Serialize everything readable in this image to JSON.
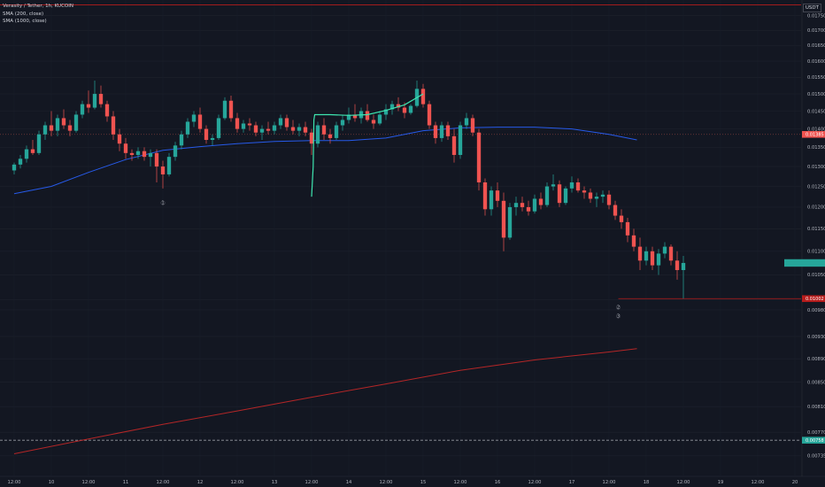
{
  "legend": {
    "symbol": "Verasity / Tether, 1h, KUCOIN",
    "sma_fast": "SMA (200, close)",
    "sma_slow": "SMA (1000, close)"
  },
  "currency_label": "USDT",
  "colors": {
    "background": "#131722",
    "bull": "#26a69a",
    "bear": "#ef5350",
    "sma_fast": "#2962ff",
    "sma_slow": "#c62828",
    "hline": "#b71c1c",
    "custom_line": "#3ee6b0"
  },
  "chart_data": {
    "type": "candlestick",
    "y_axis": {
      "scale": "log",
      "ylim": [
        0.007071,
        0.01805
      ],
      "ticks": [
        0.0175,
        0.017,
        0.0165,
        0.016,
        0.0155,
        0.015,
        0.0145,
        0.014,
        0.0135,
        0.013,
        0.0125,
        0.012,
        0.0115,
        0.011,
        0.0105,
        0.01,
        0.0098,
        0.0093,
        0.0089,
        0.0085,
        0.0081,
        0.0077,
        0.00735,
        0.007
      ]
    },
    "x_axis": {
      "start": "2022-11-09 12:00",
      "end": "2022-11-20 02:00",
      "ticks": [
        {
          "t": "2022-11-09 12:00",
          "label": "12:00"
        },
        {
          "t": "2022-11-10 00:00",
          "label": "10"
        },
        {
          "t": "2022-11-10 12:00",
          "label": "12:00"
        },
        {
          "t": "2022-11-11 00:00",
          "label": "11"
        },
        {
          "t": "2022-11-11 12:00",
          "label": "12:00"
        },
        {
          "t": "2022-11-12 00:00",
          "label": "12"
        },
        {
          "t": "2022-11-12 12:00",
          "label": "12:00"
        },
        {
          "t": "2022-11-13 00:00",
          "label": "13"
        },
        {
          "t": "2022-11-13 12:00",
          "label": "12:00"
        },
        {
          "t": "2022-11-14 00:00",
          "label": "14"
        },
        {
          "t": "2022-11-14 12:00",
          "label": "12:00"
        },
        {
          "t": "2022-11-15 00:00",
          "label": "15"
        },
        {
          "t": "2022-11-15 12:00",
          "label": "12:00"
        },
        {
          "t": "2022-11-16 00:00",
          "label": "16"
        },
        {
          "t": "2022-11-16 12:00",
          "label": "12:00"
        },
        {
          "t": "2022-11-17 00:00",
          "label": "17"
        },
        {
          "t": "2022-11-17 12:00",
          "label": "12:00"
        },
        {
          "t": "2022-11-18 00:00",
          "label": "18"
        },
        {
          "t": "2022-11-18 12:00",
          "label": "12:00"
        },
        {
          "t": "2022-11-19 00:00",
          "label": "19"
        },
        {
          "t": "2022-11-19 12:00",
          "label": "12:00"
        },
        {
          "t": "2022-11-20 00:00",
          "label": "20"
        }
      ]
    },
    "series": [
      {
        "name": "SMA (200, close)",
        "type": "line",
        "points": [
          [
            "2022-11-09 12:00",
            0.01232
          ],
          [
            "2022-11-10 00:00",
            0.0125
          ],
          [
            "2022-11-10 12:00",
            0.01285
          ],
          [
            "2022-11-11 00:00",
            0.01318
          ],
          [
            "2022-11-11 12:00",
            0.01342
          ],
          [
            "2022-11-12 00:00",
            0.01352
          ],
          [
            "2022-11-12 12:00",
            0.0136
          ],
          [
            "2022-11-13 00:00",
            0.01366
          ],
          [
            "2022-11-13 12:00",
            0.01368
          ],
          [
            "2022-11-14 00:00",
            0.01368
          ],
          [
            "2022-11-14 12:00",
            0.01375
          ],
          [
            "2022-11-15 00:00",
            0.01395
          ],
          [
            "2022-11-15 12:00",
            0.01403
          ],
          [
            "2022-11-16 00:00",
            0.01405
          ],
          [
            "2022-11-16 12:00",
            0.01405
          ],
          [
            "2022-11-17 00:00",
            0.014
          ],
          [
            "2022-11-17 12:00",
            0.01385
          ],
          [
            "2022-11-17 21:00",
            0.0137
          ]
        ]
      },
      {
        "name": "SMA (1000, close)",
        "type": "line",
        "points": [
          [
            "2022-11-09 12:00",
            0.00738
          ],
          [
            "2022-11-10 12:00",
            0.0076
          ],
          [
            "2022-11-11 12:00",
            0.00782
          ],
          [
            "2022-11-12 12:00",
            0.00803
          ],
          [
            "2022-11-13 12:00",
            0.00825
          ],
          [
            "2022-11-14 12:00",
            0.00847
          ],
          [
            "2022-11-15 12:00",
            0.0087
          ],
          [
            "2022-11-16 12:00",
            0.00888
          ],
          [
            "2022-11-17 12:00",
            0.00902
          ],
          [
            "2022-11-17 21:00",
            0.00908
          ]
        ]
      }
    ],
    "horizontal_lines": [
      {
        "y": 0.01788,
        "style": "solid",
        "color": "#b71c1c"
      },
      {
        "y": 0.01002,
        "style": "solid",
        "color": "#b71c1c",
        "x_from": "2022-11-17 15:00"
      },
      {
        "y": 0.01385,
        "style": "dotted",
        "color": "#7c3b3b"
      },
      {
        "y": 0.00758,
        "style": "dashed",
        "color": "#9598a1"
      }
    ],
    "custom_line": {
      "name": "",
      "points": [
        [
          "2022-11-13 12:00",
          0.01225
        ],
        [
          "2022-11-13 12:30",
          0.013
        ],
        [
          "2022-11-13 12:45",
          0.01425
        ],
        [
          "2022-11-13 13:00",
          0.0144
        ],
        [
          "2022-11-13 18:00",
          0.0144
        ],
        [
          "2022-11-14 00:00",
          0.01438
        ],
        [
          "2022-11-14 06:00",
          0.0144
        ],
        [
          "2022-11-14 12:00",
          0.01452
        ],
        [
          "2022-11-14 18:00",
          0.01468
        ],
        [
          "2022-11-15 00:00",
          0.015
        ]
      ]
    },
    "price_tags": [
      {
        "y": 0.01385,
        "label": "0.01385",
        "color": "#ef5350"
      },
      {
        "y": 0.01075,
        "label": "",
        "color": "#26a69a",
        "wide": true
      },
      {
        "y": 0.01002,
        "label": "0.01002",
        "color": "#b71c1c"
      },
      {
        "y": 0.00758,
        "label": "0.00758",
        "color": "#26a69a"
      }
    ],
    "markers": [
      {
        "t": "2022-11-11 12:00",
        "y": 0.0121,
        "label": "1"
      },
      {
        "t": "2022-11-17 15:00",
        "y": 0.00985,
        "label": "2"
      },
      {
        "t": "2022-11-17 15:00",
        "y": 0.00968,
        "label": "3"
      }
    ],
    "ohlc": [
      [
        "2022-11-09 12:00",
        0.0129,
        0.0131,
        0.0128,
        0.01305
      ],
      [
        "2022-11-09 14:00",
        0.01305,
        0.0133,
        0.01295,
        0.0132
      ],
      [
        "2022-11-09 16:00",
        0.0132,
        0.01355,
        0.0131,
        0.01345
      ],
      [
        "2022-11-09 18:00",
        0.01345,
        0.0137,
        0.0133,
        0.01335
      ],
      [
        "2022-11-09 20:00",
        0.01335,
        0.01395,
        0.0133,
        0.01385
      ],
      [
        "2022-11-09 22:00",
        0.01385,
        0.0142,
        0.0137,
        0.0141
      ],
      [
        "2022-11-10 00:00",
        0.0141,
        0.0145,
        0.0138,
        0.01395
      ],
      [
        "2022-11-10 02:00",
        0.01395,
        0.0144,
        0.0138,
        0.0143
      ],
      [
        "2022-11-10 04:00",
        0.0143,
        0.01455,
        0.014,
        0.0141
      ],
      [
        "2022-11-10 06:00",
        0.0141,
        0.01425,
        0.0138,
        0.01395
      ],
      [
        "2022-11-10 08:00",
        0.01395,
        0.0145,
        0.0139,
        0.0144
      ],
      [
        "2022-11-10 10:00",
        0.0144,
        0.0148,
        0.0143,
        0.0147
      ],
      [
        "2022-11-10 12:00",
        0.0147,
        0.0151,
        0.01445,
        0.0146
      ],
      [
        "2022-11-10 14:00",
        0.0146,
        0.0154,
        0.01455,
        0.015
      ],
      [
        "2022-11-10 16:00",
        0.015,
        0.01525,
        0.0146,
        0.0147
      ],
      [
        "2022-11-10 18:00",
        0.0147,
        0.0148,
        0.0142,
        0.01435
      ],
      [
        "2022-11-10 20:00",
        0.01435,
        0.0145,
        0.0137,
        0.01385
      ],
      [
        "2022-11-10 22:00",
        0.01385,
        0.014,
        0.0134,
        0.0136
      ],
      [
        "2022-11-11 00:00",
        0.0136,
        0.01375,
        0.0132,
        0.01335
      ],
      [
        "2022-11-11 02:00",
        0.01335,
        0.01345,
        0.01315,
        0.0133
      ],
      [
        "2022-11-11 04:00",
        0.0133,
        0.0135,
        0.0132,
        0.0134
      ],
      [
        "2022-11-11 06:00",
        0.0134,
        0.0135,
        0.01315,
        0.01325
      ],
      [
        "2022-11-11 08:00",
        0.01325,
        0.01345,
        0.013,
        0.01335
      ],
      [
        "2022-11-11 10:00",
        0.01335,
        0.01345,
        0.0126,
        0.013
      ],
      [
        "2022-11-11 12:00",
        0.013,
        0.01315,
        0.01245,
        0.0128
      ],
      [
        "2022-11-11 14:00",
        0.0128,
        0.01335,
        0.01275,
        0.01325
      ],
      [
        "2022-11-11 16:00",
        0.01325,
        0.01365,
        0.01315,
        0.01355
      ],
      [
        "2022-11-11 18:00",
        0.01355,
        0.01395,
        0.01345,
        0.01385
      ],
      [
        "2022-11-11 20:00",
        0.01385,
        0.0143,
        0.01375,
        0.0142
      ],
      [
        "2022-11-11 22:00",
        0.0142,
        0.0145,
        0.01405,
        0.0144
      ],
      [
        "2022-11-12 00:00",
        0.0144,
        0.0146,
        0.0139,
        0.014
      ],
      [
        "2022-11-12 02:00",
        0.014,
        0.0141,
        0.0136,
        0.0137
      ],
      [
        "2022-11-12 04:00",
        0.0137,
        0.01385,
        0.01355,
        0.01375
      ],
      [
        "2022-11-12 06:00",
        0.01375,
        0.0144,
        0.0137,
        0.0143
      ],
      [
        "2022-11-12 08:00",
        0.0143,
        0.0149,
        0.01425,
        0.0148
      ],
      [
        "2022-11-12 10:00",
        0.0148,
        0.01495,
        0.0142,
        0.0143
      ],
      [
        "2022-11-12 12:00",
        0.0143,
        0.01445,
        0.0139,
        0.014
      ],
      [
        "2022-11-12 14:00",
        0.014,
        0.01425,
        0.0139,
        0.01415
      ],
      [
        "2022-11-12 16:00",
        0.01415,
        0.0143,
        0.01395,
        0.0141
      ],
      [
        "2022-11-12 18:00",
        0.0141,
        0.0142,
        0.0138,
        0.0139
      ],
      [
        "2022-11-12 20:00",
        0.0139,
        0.0141,
        0.0137,
        0.014
      ],
      [
        "2022-11-12 22:00",
        0.014,
        0.0142,
        0.01385,
        0.01395
      ],
      [
        "2022-11-13 00:00",
        0.01395,
        0.0142,
        0.01385,
        0.0141
      ],
      [
        "2022-11-13 02:00",
        0.0141,
        0.0144,
        0.014,
        0.0143
      ],
      [
        "2022-11-13 04:00",
        0.0143,
        0.0144,
        0.01395,
        0.01405
      ],
      [
        "2022-11-13 06:00",
        0.01405,
        0.01425,
        0.01385,
        0.01395
      ],
      [
        "2022-11-13 08:00",
        0.01395,
        0.01415,
        0.0138,
        0.01405
      ],
      [
        "2022-11-13 10:00",
        0.01405,
        0.0142,
        0.0138,
        0.0139
      ],
      [
        "2022-11-13 12:00",
        0.0139,
        0.014,
        0.0133,
        0.0136
      ],
      [
        "2022-11-13 14:00",
        0.0136,
        0.0142,
        0.0135,
        0.0141
      ],
      [
        "2022-11-13 16:00",
        0.0141,
        0.0143,
        0.0137,
        0.01385
      ],
      [
        "2022-11-13 18:00",
        0.01385,
        0.014,
        0.0136,
        0.01375
      ],
      [
        "2022-11-13 20:00",
        0.01375,
        0.0142,
        0.0137,
        0.0141
      ],
      [
        "2022-11-13 22:00",
        0.0141,
        0.0144,
        0.01395,
        0.01425
      ],
      [
        "2022-11-14 00:00",
        0.01425,
        0.0146,
        0.01415,
        0.0144
      ],
      [
        "2022-11-14 02:00",
        0.0144,
        0.0147,
        0.0142,
        0.0143
      ],
      [
        "2022-11-14 04:00",
        0.0143,
        0.0146,
        0.01415,
        0.0145
      ],
      [
        "2022-11-14 06:00",
        0.0145,
        0.0147,
        0.0142,
        0.01425
      ],
      [
        "2022-11-14 08:00",
        0.01425,
        0.0144,
        0.014,
        0.01415
      ],
      [
        "2022-11-14 10:00",
        0.01415,
        0.0145,
        0.0141,
        0.0144
      ],
      [
        "2022-11-14 12:00",
        0.0144,
        0.0147,
        0.01425,
        0.01455
      ],
      [
        "2022-11-14 14:00",
        0.01455,
        0.0148,
        0.0144,
        0.0147
      ],
      [
        "2022-11-14 16:00",
        0.0147,
        0.0149,
        0.0145,
        0.0146
      ],
      [
        "2022-11-14 18:00",
        0.0146,
        0.01475,
        0.0143,
        0.01445
      ],
      [
        "2022-11-14 20:00",
        0.01445,
        0.0147,
        0.0144,
        0.01465
      ],
      [
        "2022-11-14 22:00",
        0.01465,
        0.0154,
        0.0146,
        0.01515
      ],
      [
        "2022-11-15 00:00",
        0.01515,
        0.0153,
        0.0146,
        0.0147
      ],
      [
        "2022-11-15 02:00",
        0.0147,
        0.0148,
        0.014,
        0.0141
      ],
      [
        "2022-11-15 04:00",
        0.0141,
        0.0142,
        0.0136,
        0.01375
      ],
      [
        "2022-11-15 06:00",
        0.01375,
        0.0142,
        0.01365,
        0.0141
      ],
      [
        "2022-11-15 08:00",
        0.0141,
        0.0142,
        0.0137,
        0.0138
      ],
      [
        "2022-11-15 10:00",
        0.0138,
        0.014,
        0.0131,
        0.0133
      ],
      [
        "2022-11-15 12:00",
        0.0133,
        0.0142,
        0.0132,
        0.0141
      ],
      [
        "2022-11-15 14:00",
        0.0141,
        0.01445,
        0.014,
        0.0143
      ],
      [
        "2022-11-15 16:00",
        0.0143,
        0.0144,
        0.0138,
        0.0139
      ],
      [
        "2022-11-15 18:00",
        0.0139,
        0.014,
        0.0124,
        0.0126
      ],
      [
        "2022-11-15 20:00",
        0.0126,
        0.0127,
        0.0118,
        0.01195
      ],
      [
        "2022-11-15 22:00",
        0.01195,
        0.0125,
        0.0118,
        0.0124
      ],
      [
        "2022-11-16 00:00",
        0.0124,
        0.0126,
        0.012,
        0.01215
      ],
      [
        "2022-11-16 02:00",
        0.01215,
        0.01235,
        0.011,
        0.0113
      ],
      [
        "2022-11-16 04:00",
        0.0113,
        0.0121,
        0.01125,
        0.012
      ],
      [
        "2022-11-16 06:00",
        0.012,
        0.01225,
        0.0118,
        0.0121
      ],
      [
        "2022-11-16 08:00",
        0.0121,
        0.01225,
        0.0119,
        0.012
      ],
      [
        "2022-11-16 10:00",
        0.012,
        0.01215,
        0.0118,
        0.0119
      ],
      [
        "2022-11-16 12:00",
        0.0119,
        0.0123,
        0.01185,
        0.0122
      ],
      [
        "2022-11-16 14:00",
        0.0122,
        0.01235,
        0.01195,
        0.01205
      ],
      [
        "2022-11-16 16:00",
        0.01205,
        0.0126,
        0.012,
        0.0125
      ],
      [
        "2022-11-16 18:00",
        0.0125,
        0.0128,
        0.0124,
        0.01255
      ],
      [
        "2022-11-16 20:00",
        0.01255,
        0.01265,
        0.012,
        0.0121
      ],
      [
        "2022-11-16 22:00",
        0.0121,
        0.0125,
        0.01205,
        0.01245
      ],
      [
        "2022-11-17 00:00",
        0.01245,
        0.01275,
        0.01235,
        0.0126
      ],
      [
        "2022-11-17 02:00",
        0.0126,
        0.0127,
        0.01235,
        0.0124
      ],
      [
        "2022-11-17 04:00",
        0.0124,
        0.0125,
        0.0122,
        0.01235
      ],
      [
        "2022-11-17 06:00",
        0.01235,
        0.01245,
        0.0121,
        0.0122
      ],
      [
        "2022-11-17 08:00",
        0.0122,
        0.01235,
        0.012,
        0.01225
      ],
      [
        "2022-11-17 10:00",
        0.01225,
        0.0124,
        0.0121,
        0.0123
      ],
      [
        "2022-11-17 12:00",
        0.0123,
        0.0124,
        0.01195,
        0.01205
      ],
      [
        "2022-11-17 14:00",
        0.01205,
        0.01215,
        0.0117,
        0.0118
      ],
      [
        "2022-11-17 16:00",
        0.0118,
        0.01195,
        0.0115,
        0.01165
      ],
      [
        "2022-11-17 18:00",
        0.01165,
        0.01175,
        0.0112,
        0.01135
      ],
      [
        "2022-11-17 20:00",
        0.01135,
        0.0115,
        0.011,
        0.0111
      ],
      [
        "2022-11-17 22:00",
        0.0111,
        0.0113,
        0.0106,
        0.0108
      ],
      [
        "2022-11-18 00:00",
        0.0108,
        0.0111,
        0.0107,
        0.011
      ],
      [
        "2022-11-18 02:00",
        0.011,
        0.0111,
        0.0106,
        0.0107
      ],
      [
        "2022-11-18 04:00",
        0.0107,
        0.01105,
        0.0105,
        0.01095
      ],
      [
        "2022-11-18 06:00",
        0.01095,
        0.0112,
        0.01085,
        0.0111
      ],
      [
        "2022-11-18 08:00",
        0.0111,
        0.01115,
        0.0107,
        0.0108
      ],
      [
        "2022-11-18 10:00",
        0.0108,
        0.011,
        0.0104,
        0.0106
      ],
      [
        "2022-11-18 12:00",
        0.0106,
        0.0109,
        0.01002,
        0.01075
      ]
    ]
  }
}
